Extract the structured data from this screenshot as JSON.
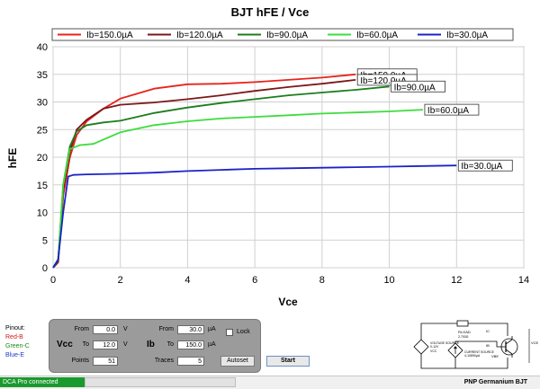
{
  "chart_data": {
    "type": "line",
    "title": "BJT hFE / Vce",
    "xlabel": "Vce",
    "ylabel": "hFE",
    "xlim": [
      0,
      14
    ],
    "ylim": [
      0,
      40
    ],
    "xticks": [
      0,
      2,
      4,
      6,
      8,
      10,
      12,
      14
    ],
    "yticks": [
      0,
      5,
      10,
      15,
      20,
      25,
      30,
      35,
      40
    ],
    "grid": true,
    "legend_position": "top",
    "series": [
      {
        "name": "Ib=150.0µA",
        "color": "#e8231c",
        "end_label": "Ib=150.0µA",
        "x": [
          0,
          0.15,
          0.3,
          0.5,
          0.7,
          1.0,
          1.5,
          2.0,
          3.0,
          4.0,
          5.0,
          6.0,
          7.0,
          8.0,
          9.0
        ],
        "y": [
          0,
          1,
          13,
          20,
          24,
          26.5,
          28.8,
          30.6,
          32.4,
          33.2,
          33.3,
          33.6,
          34.0,
          34.4,
          35.0
        ]
      },
      {
        "name": "Ib=120.0µA",
        "color": "#7a1818",
        "end_label": "Ib=120.0µA",
        "x": [
          0,
          0.15,
          0.3,
          0.5,
          0.7,
          1.0,
          1.5,
          2.0,
          3.0,
          4.0,
          5.0,
          6.0,
          7.0,
          8.0,
          9.0
        ],
        "y": [
          0,
          1,
          14,
          21,
          25,
          26.8,
          28.8,
          29.5,
          29.9,
          30.5,
          31.2,
          32.0,
          32.7,
          33.3,
          34.0
        ]
      },
      {
        "name": "Ib=90.0µA",
        "color": "#1c7d1c",
        "end_label": "Ib=90.0µA",
        "x": [
          0,
          0.15,
          0.3,
          0.5,
          0.7,
          1.0,
          1.5,
          2.0,
          3.0,
          4.0,
          5.0,
          6.0,
          7.0,
          8.0,
          9.0,
          10.0
        ],
        "y": [
          0,
          1.5,
          15,
          22,
          24.7,
          25.8,
          26.3,
          26.6,
          28.0,
          29.0,
          29.8,
          30.5,
          31.2,
          31.7,
          32.2,
          32.8
        ]
      },
      {
        "name": "Ib=60.0µA",
        "color": "#3ddc3d",
        "end_label": "Ib=60.0µA",
        "x": [
          0,
          0.15,
          0.3,
          0.5,
          0.8,
          1.2,
          1.5,
          2.0,
          3.0,
          4.0,
          5.0,
          6.0,
          7.0,
          8.0,
          9.0,
          10.0,
          11.0
        ],
        "y": [
          0,
          1.5,
          15,
          21.5,
          22.2,
          22.4,
          23.2,
          24.5,
          25.8,
          26.5,
          27.0,
          27.3,
          27.6,
          27.9,
          28.1,
          28.3,
          28.6
        ]
      },
      {
        "name": "Ib=30.0µA",
        "color": "#1c22c8",
        "end_label": "Ib=30.0µA",
        "x": [
          0,
          0.15,
          0.3,
          0.45,
          0.6,
          1.0,
          2.0,
          3.0,
          4.0,
          5.0,
          6.0,
          7.0,
          8.0,
          9.0,
          10.0,
          11.0,
          12.0
        ],
        "y": [
          0,
          1.5,
          10,
          16.5,
          16.8,
          16.9,
          17.0,
          17.2,
          17.5,
          17.7,
          17.9,
          18.0,
          18.1,
          18.2,
          18.3,
          18.4,
          18.5
        ]
      }
    ]
  },
  "controls": {
    "pinout": {
      "title": "Pinout:",
      "red": "Red-B",
      "green": "Green-C",
      "blue": "Blue-E"
    },
    "vcc": {
      "label": "Vcc",
      "from_label": "From",
      "from_value": "0.0",
      "from_unit": "V",
      "to_label": "To",
      "to_value": "12.0",
      "to_unit": "V",
      "points_label": "Points",
      "points_value": "51"
    },
    "ib": {
      "label": "Ib",
      "from_label": "From",
      "from_value": "30.0",
      "from_unit": "µA",
      "to_label": "To",
      "to_value": "150.0",
      "to_unit": "µA",
      "traces_label": "Traces",
      "traces_value": "5"
    },
    "lock_label": "Lock",
    "autoset_label": "Autoset",
    "start_label": "Start"
  },
  "schematic": {
    "rload": "RLOAD",
    "rload_val": "2.700Ω",
    "ic": "IC",
    "ib": "IB",
    "vce": "VCE",
    "vbe": "VBE",
    "voltage_source": "VOLTAGE SOURCE",
    "voltage_range": "0-12V",
    "vcc": "VCC",
    "current_source": "CURRENT SOURCE",
    "current_range": "4-10890µA"
  },
  "status": {
    "connection": "DCA Pro connected",
    "device": "PNP Germanium BJT"
  }
}
